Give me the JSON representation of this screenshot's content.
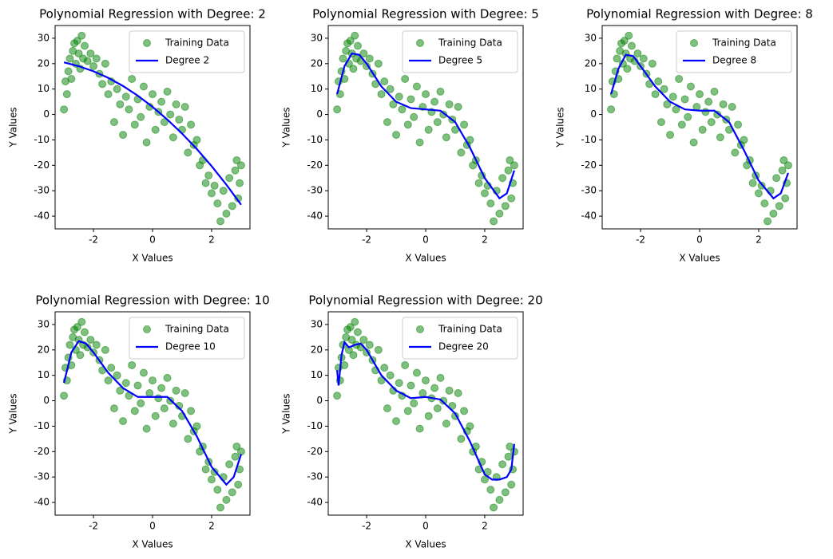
{
  "chart_data": [
    {
      "type": "scatter",
      "title": "Polynomial Regression with Degree: 2",
      "xlabel": "X Values",
      "ylabel": "Y Values",
      "xlim": [
        -3.3,
        3.3
      ],
      "ylim": [
        -45,
        35
      ],
      "xticks": [
        -2,
        0,
        2
      ],
      "yticks": [
        -40,
        -30,
        -20,
        -10,
        0,
        10,
        20,
        30
      ],
      "legend": "upper right",
      "series": [
        {
          "name": "Training Data",
          "type": "scatter",
          "color": "#008000",
          "x": [
            -3.0,
            -2.95,
            -2.9,
            -2.85,
            -2.8,
            -2.75,
            -2.7,
            -2.65,
            -2.6,
            -2.55,
            -2.5,
            -2.45,
            -2.4,
            -2.35,
            -2.3,
            -2.2,
            -2.1,
            -2.0,
            -1.9,
            -1.8,
            -1.7,
            -1.6,
            -1.5,
            -1.4,
            -1.3,
            -1.2,
            -1.1,
            -1.0,
            -0.9,
            -0.8,
            -0.7,
            -0.6,
            -0.5,
            -0.4,
            -0.3,
            -0.2,
            -0.1,
            0.0,
            0.1,
            0.2,
            0.3,
            0.4,
            0.5,
            0.6,
            0.7,
            0.8,
            0.9,
            1.0,
            1.1,
            1.2,
            1.3,
            1.4,
            1.5,
            1.6,
            1.7,
            1.8,
            1.9,
            2.0,
            2.1,
            2.2,
            2.3,
            2.4,
            2.5,
            2.6,
            2.7,
            2.8,
            2.9,
            3.0,
            2.95,
            2.85
          ],
          "values": [
            2,
            13,
            8,
            17,
            22,
            14,
            25,
            28,
            20,
            29,
            24,
            18,
            31,
            22,
            27,
            21,
            24,
            19,
            22,
            16,
            12,
            20,
            8,
            13,
            -3,
            10,
            4,
            -8,
            7,
            2,
            14,
            -4,
            6,
            -1,
            11,
            -11,
            3,
            8,
            -6,
            1,
            5,
            -3,
            9,
            0,
            -9,
            4,
            -2,
            -6,
            3,
            -15,
            -4,
            -12,
            -10,
            -20,
            -18,
            -27,
            -24,
            -31,
            -28,
            -35,
            -42,
            -30,
            -39,
            -25,
            -36,
            -22,
            -33,
            -20,
            -27,
            -18
          ]
        },
        {
          "name": "Degree 2",
          "type": "line",
          "color": "#0000ff",
          "x": [
            -3,
            -2.5,
            -2,
            -1.5,
            -1,
            -0.5,
            0,
            0.5,
            1,
            1.5,
            2,
            2.5,
            3
          ],
          "values": [
            20.5,
            19.0,
            17.0,
            14.4,
            11.2,
            7.4,
            3.0,
            -2.0,
            -7.5,
            -13.6,
            -20.3,
            -27.6,
            -35.5
          ]
        }
      ]
    },
    {
      "type": "scatter",
      "title": "Polynomial Regression with Degree: 5",
      "xlabel": "X Values",
      "ylabel": "Y Values",
      "xlim": [
        -3.3,
        3.3
      ],
      "ylim": [
        -45,
        35
      ],
      "xticks": [
        -2,
        0,
        2
      ],
      "yticks": [
        -40,
        -30,
        -20,
        -10,
        0,
        10,
        20,
        30
      ],
      "legend": "upper right",
      "series": [
        {
          "name": "Training Data",
          "type": "scatter",
          "color": "#008000",
          "x": [
            -3.0,
            -2.95,
            -2.9,
            -2.85,
            -2.8,
            -2.75,
            -2.7,
            -2.65,
            -2.6,
            -2.55,
            -2.5,
            -2.45,
            -2.4,
            -2.35,
            -2.3,
            -2.2,
            -2.1,
            -2.0,
            -1.9,
            -1.8,
            -1.7,
            -1.6,
            -1.5,
            -1.4,
            -1.3,
            -1.2,
            -1.1,
            -1.0,
            -0.9,
            -0.8,
            -0.7,
            -0.6,
            -0.5,
            -0.4,
            -0.3,
            -0.2,
            -0.1,
            0.0,
            0.1,
            0.2,
            0.3,
            0.4,
            0.5,
            0.6,
            0.7,
            0.8,
            0.9,
            1.0,
            1.1,
            1.2,
            1.3,
            1.4,
            1.5,
            1.6,
            1.7,
            1.8,
            1.9,
            2.0,
            2.1,
            2.2,
            2.3,
            2.4,
            2.5,
            2.6,
            2.7,
            2.8,
            2.9,
            3.0,
            2.95,
            2.85
          ],
          "values": [
            2,
            13,
            8,
            17,
            22,
            14,
            25,
            28,
            20,
            29,
            24,
            18,
            31,
            22,
            27,
            21,
            24,
            19,
            22,
            16,
            12,
            20,
            8,
            13,
            -3,
            10,
            4,
            -8,
            7,
            2,
            14,
            -4,
            6,
            -1,
            11,
            -11,
            3,
            8,
            -6,
            1,
            5,
            -3,
            9,
            0,
            -9,
            4,
            -2,
            -6,
            3,
            -15,
            -4,
            -12,
            -10,
            -20,
            -18,
            -27,
            -24,
            -31,
            -28,
            -35,
            -42,
            -30,
            -39,
            -25,
            -36,
            -22,
            -33,
            -20,
            -27,
            -18
          ]
        },
        {
          "name": "Degree 5",
          "type": "line",
          "color": "#0000ff",
          "x": [
            -3,
            -2.75,
            -2.5,
            -2.25,
            -2,
            -1.5,
            -1,
            -0.5,
            0,
            0.5,
            1,
            1.5,
            2,
            2.5,
            2.75,
            3
          ],
          "values": [
            8,
            19,
            24,
            23.5,
            20,
            11,
            5,
            2.5,
            2,
            1.5,
            -3,
            -13,
            -25,
            -33,
            -31,
            -22
          ]
        }
      ]
    },
    {
      "type": "scatter",
      "title": "Polynomial Regression with Degree: 8",
      "xlabel": "X Values",
      "ylabel": "Y Values",
      "xlim": [
        -3.3,
        3.3
      ],
      "ylim": [
        -45,
        35
      ],
      "xticks": [
        -2,
        0,
        2
      ],
      "yticks": [
        -40,
        -30,
        -20,
        -10,
        0,
        10,
        20,
        30
      ],
      "legend": "upper right",
      "series": [
        {
          "name": "Training Data",
          "type": "scatter",
          "color": "#008000",
          "x": [
            -3.0,
            -2.95,
            -2.9,
            -2.85,
            -2.8,
            -2.75,
            -2.7,
            -2.65,
            -2.6,
            -2.55,
            -2.5,
            -2.45,
            -2.4,
            -2.35,
            -2.3,
            -2.2,
            -2.1,
            -2.0,
            -1.9,
            -1.8,
            -1.7,
            -1.6,
            -1.5,
            -1.4,
            -1.3,
            -1.2,
            -1.1,
            -1.0,
            -0.9,
            -0.8,
            -0.7,
            -0.6,
            -0.5,
            -0.4,
            -0.3,
            -0.2,
            -0.1,
            0.0,
            0.1,
            0.2,
            0.3,
            0.4,
            0.5,
            0.6,
            0.7,
            0.8,
            0.9,
            1.0,
            1.1,
            1.2,
            1.3,
            1.4,
            1.5,
            1.6,
            1.7,
            1.8,
            1.9,
            2.0,
            2.1,
            2.2,
            2.3,
            2.4,
            2.5,
            2.6,
            2.7,
            2.8,
            2.9,
            3.0,
            2.95,
            2.85
          ],
          "values": [
            2,
            13,
            8,
            17,
            22,
            14,
            25,
            28,
            20,
            29,
            24,
            18,
            31,
            22,
            27,
            21,
            24,
            19,
            22,
            16,
            12,
            20,
            8,
            13,
            -3,
            10,
            4,
            -8,
            7,
            2,
            14,
            -4,
            6,
            -1,
            11,
            -11,
            3,
            8,
            -6,
            1,
            5,
            -3,
            9,
            0,
            -9,
            4,
            -2,
            -6,
            3,
            -15,
            -4,
            -12,
            -10,
            -20,
            -18,
            -27,
            -24,
            -31,
            -28,
            -35,
            -42,
            -30,
            -39,
            -25,
            -36,
            -22,
            -33,
            -20,
            -27,
            -18
          ]
        },
        {
          "name": "Degree 8",
          "type": "line",
          "color": "#0000ff",
          "x": [
            -3,
            -2.75,
            -2.5,
            -2.25,
            -2,
            -1.5,
            -1,
            -0.5,
            0,
            0.5,
            1,
            1.5,
            2,
            2.5,
            2.75,
            3
          ],
          "values": [
            8,
            18,
            23.5,
            23,
            19,
            11,
            5,
            2,
            1.5,
            1.5,
            -3,
            -14,
            -26,
            -33,
            -31,
            -23
          ]
        }
      ]
    },
    {
      "type": "scatter",
      "title": "Polynomial Regression with Degree: 10",
      "xlabel": "X Values",
      "ylabel": "Y Values",
      "xlim": [
        -3.3,
        3.3
      ],
      "ylim": [
        -45,
        35
      ],
      "xticks": [
        -2,
        0,
        2
      ],
      "yticks": [
        -40,
        -30,
        -20,
        -10,
        0,
        10,
        20,
        30
      ],
      "legend": "upper right",
      "series": [
        {
          "name": "Training Data",
          "type": "scatter",
          "color": "#008000",
          "x": [
            -3.0,
            -2.95,
            -2.9,
            -2.85,
            -2.8,
            -2.75,
            -2.7,
            -2.65,
            -2.6,
            -2.55,
            -2.5,
            -2.45,
            -2.4,
            -2.35,
            -2.3,
            -2.2,
            -2.1,
            -2.0,
            -1.9,
            -1.8,
            -1.7,
            -1.6,
            -1.5,
            -1.4,
            -1.3,
            -1.2,
            -1.1,
            -1.0,
            -0.9,
            -0.8,
            -0.7,
            -0.6,
            -0.5,
            -0.4,
            -0.3,
            -0.2,
            -0.1,
            0.0,
            0.1,
            0.2,
            0.3,
            0.4,
            0.5,
            0.6,
            0.7,
            0.8,
            0.9,
            1.0,
            1.1,
            1.2,
            1.3,
            1.4,
            1.5,
            1.6,
            1.7,
            1.8,
            1.9,
            2.0,
            2.1,
            2.2,
            2.3,
            2.4,
            2.5,
            2.6,
            2.7,
            2.8,
            2.9,
            3.0,
            2.95,
            2.85
          ],
          "values": [
            2,
            13,
            8,
            17,
            22,
            14,
            25,
            28,
            20,
            29,
            24,
            18,
            31,
            22,
            27,
            21,
            24,
            19,
            22,
            16,
            12,
            20,
            8,
            13,
            -3,
            10,
            4,
            -8,
            7,
            2,
            14,
            -4,
            6,
            -1,
            11,
            -11,
            3,
            8,
            -6,
            1,
            5,
            -3,
            9,
            0,
            -9,
            4,
            -2,
            -6,
            3,
            -15,
            -4,
            -12,
            -10,
            -20,
            -18,
            -27,
            -24,
            -31,
            -28,
            -35,
            -42,
            -30,
            -39,
            -25,
            -36,
            -22,
            -33,
            -20,
            -27,
            -18
          ]
        },
        {
          "name": "Degree 10",
          "type": "line",
          "color": "#0000ff",
          "x": [
            -3,
            -2.75,
            -2.5,
            -2.25,
            -2,
            -1.5,
            -1,
            -0.5,
            0,
            0.5,
            1,
            1.5,
            2,
            2.5,
            2.75,
            3
          ],
          "values": [
            7,
            19,
            23.5,
            22.5,
            19,
            11,
            5,
            1.5,
            1.5,
            1.5,
            -4,
            -14,
            -26,
            -33,
            -30,
            -21
          ]
        }
      ]
    },
    {
      "type": "scatter",
      "title": "Polynomial Regression with Degree: 20",
      "xlabel": "X Values",
      "ylabel": "Y Values",
      "xlim": [
        -3.3,
        3.3
      ],
      "ylim": [
        -45,
        35
      ],
      "xticks": [
        -2,
        0,
        2
      ],
      "yticks": [
        -40,
        -30,
        -20,
        -10,
        0,
        10,
        20,
        30
      ],
      "legend": "upper right",
      "series": [
        {
          "name": "Training Data",
          "type": "scatter",
          "color": "#008000",
          "x": [
            -3.0,
            -2.95,
            -2.9,
            -2.85,
            -2.8,
            -2.75,
            -2.7,
            -2.65,
            -2.6,
            -2.55,
            -2.5,
            -2.45,
            -2.4,
            -2.35,
            -2.3,
            -2.2,
            -2.1,
            -2.0,
            -1.9,
            -1.8,
            -1.7,
            -1.6,
            -1.5,
            -1.4,
            -1.3,
            -1.2,
            -1.1,
            -1.0,
            -0.9,
            -0.8,
            -0.7,
            -0.6,
            -0.5,
            -0.4,
            -0.3,
            -0.2,
            -0.1,
            0.0,
            0.1,
            0.2,
            0.3,
            0.4,
            0.5,
            0.6,
            0.7,
            0.8,
            0.9,
            1.0,
            1.1,
            1.2,
            1.3,
            1.4,
            1.5,
            1.6,
            1.7,
            1.8,
            1.9,
            2.0,
            2.1,
            2.2,
            2.3,
            2.4,
            2.5,
            2.6,
            2.7,
            2.8,
            2.9,
            3.0,
            2.95,
            2.85
          ],
          "values": [
            2,
            13,
            8,
            17,
            22,
            14,
            25,
            28,
            20,
            29,
            24,
            18,
            31,
            22,
            27,
            21,
            24,
            19,
            22,
            16,
            12,
            20,
            8,
            13,
            -3,
            10,
            4,
            -8,
            7,
            2,
            14,
            -4,
            6,
            -1,
            11,
            -11,
            3,
            8,
            -6,
            1,
            5,
            -3,
            9,
            0,
            -9,
            4,
            -2,
            -6,
            3,
            -15,
            -4,
            -12,
            -10,
            -20,
            -18,
            -27,
            -24,
            -31,
            -28,
            -35,
            -42,
            -30,
            -39,
            -25,
            -36,
            -22,
            -33,
            -20,
            -27,
            -18
          ]
        },
        {
          "name": "Degree 20",
          "type": "line",
          "color": "#0000ff",
          "x": [
            -3,
            -2.95,
            -2.85,
            -2.75,
            -2.6,
            -2.4,
            -2.2,
            -2,
            -1.5,
            -1,
            -0.5,
            0,
            0.5,
            1,
            1.5,
            2,
            2.25,
            2.5,
            2.75,
            2.9,
            3
          ],
          "values": [
            12,
            6,
            18,
            23,
            21,
            22,
            22.5,
            20,
            10,
            4,
            1,
            1.5,
            0.5,
            -5,
            -16,
            -29,
            -31,
            -31,
            -30,
            -27,
            -17
          ]
        }
      ]
    }
  ]
}
